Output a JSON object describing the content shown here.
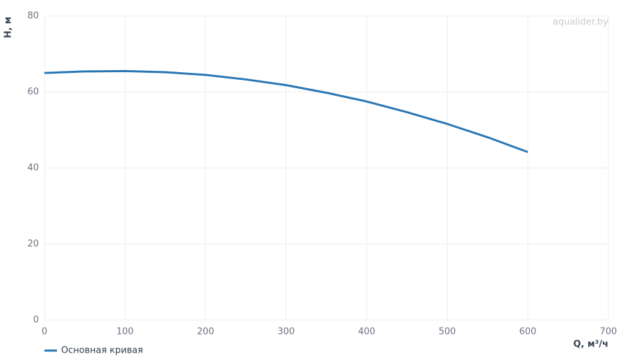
{
  "chart_data": {
    "type": "line",
    "watermark": "aqualider.by",
    "x_label": "Q, м³/ч",
    "y_label": "H, м",
    "x": [
      0,
      50,
      100,
      150,
      200,
      250,
      300,
      350,
      400,
      450,
      500,
      550,
      600
    ],
    "series": [
      {
        "name": "Основная кривая",
        "color": "#2a77b4",
        "values": [
          65.0,
          65.4,
          65.5,
          65.2,
          64.5,
          63.3,
          61.8,
          59.8,
          57.5,
          54.7,
          51.6,
          48.1,
          44.2
        ]
      }
    ],
    "xlim": [
      0,
      700
    ],
    "xticks": [
      0,
      100,
      200,
      300,
      400,
      500,
      600,
      700
    ],
    "ylim": [
      0,
      80
    ],
    "yticks": [
      0,
      20,
      40,
      60,
      80
    ],
    "grid": true,
    "legend": "bottom-left"
  }
}
